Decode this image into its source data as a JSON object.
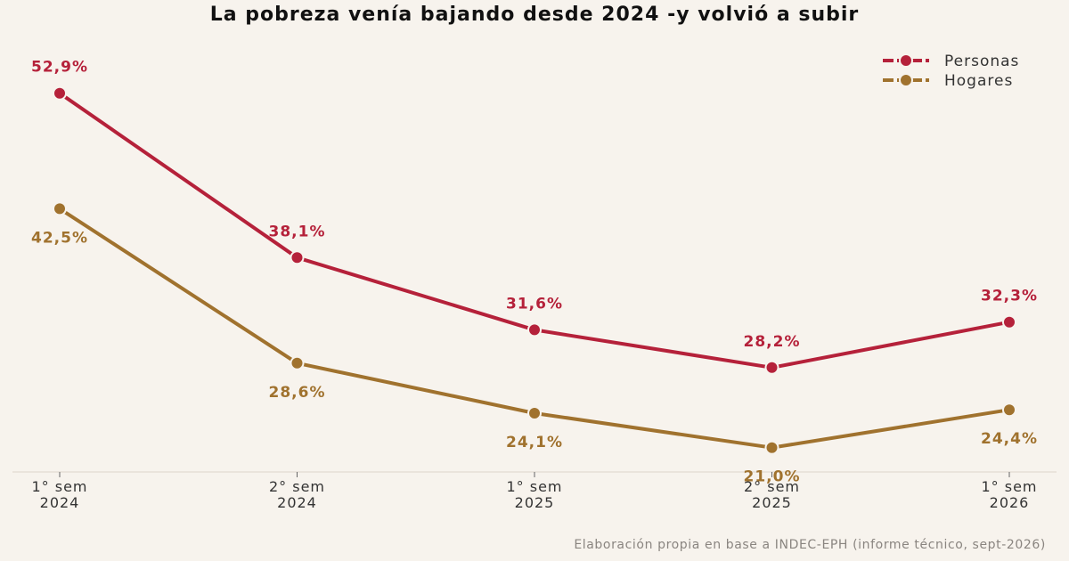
{
  "chart_data": {
    "type": "line",
    "title": "La pobreza venía bajando desde 2024 -y volvió a subir",
    "categories": [
      [
        "1° sem",
        "2024"
      ],
      [
        "2° sem",
        "2024"
      ],
      [
        "1° sem",
        "2025"
      ],
      [
        "2° sem",
        "2025"
      ],
      [
        "1° sem",
        "2026"
      ]
    ],
    "series": [
      {
        "name": "Personas",
        "color": "#b5213a",
        "values": [
          52.9,
          38.1,
          31.6,
          28.2,
          32.3
        ],
        "labels": [
          "52,9%",
          "38,1%",
          "31,6%",
          "28,2%",
          "32,3%"
        ]
      },
      {
        "name": "Hogares",
        "color": "#a0722e",
        "values": [
          42.5,
          28.6,
          24.1,
          21.0,
          24.4
        ],
        "labels": [
          "42,5%",
          "28,6%",
          "24,1%",
          "21,0%",
          "24,4%"
        ]
      }
    ],
    "ylim": [
      14.0,
      56.0
    ],
    "grid": false,
    "legend_position": "top-right",
    "source": "Elaboración propia en base a INDEC-EPH (informe técnico, sept-2026)"
  }
}
